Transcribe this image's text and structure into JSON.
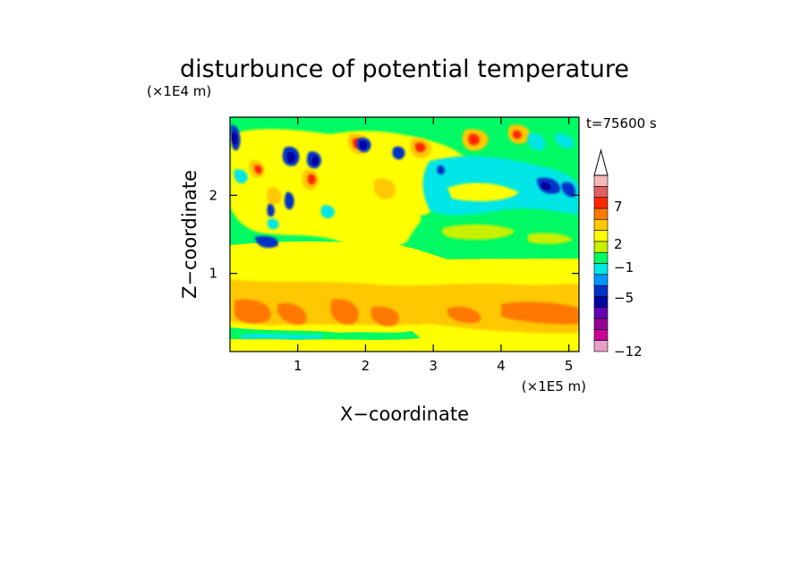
{
  "chart_data": {
    "type": "heatmap",
    "title": "disturbunce of potential temperature",
    "time_label": "t=75600 s",
    "xlabel": "X−coordinate",
    "ylabel": "Z−coordinate",
    "x_unit": "(×1E5 m)",
    "y_unit": "(×1E4 m)",
    "xlim": [
      0,
      5.15
    ],
    "ylim": [
      0,
      3.0
    ],
    "x_ticks": [
      1,
      2,
      3,
      4,
      5
    ],
    "y_ticks": [
      1,
      2
    ],
    "x_tick_labels": [
      "1",
      "2",
      "3",
      "4",
      "5"
    ],
    "y_tick_labels": [
      "1",
      "2"
    ],
    "colorbar": {
      "extend": "max",
      "tick_values": [
        7,
        2,
        -1,
        -5,
        -12
      ],
      "tick_labels": [
        "7",
        "2",
        "−1",
        "−5",
        "−12"
      ],
      "levels": [
        {
          "color": "#e6a0c8"
        },
        {
          "color": "#c80096"
        },
        {
          "color": "#960096"
        },
        {
          "color": "#6400b4"
        },
        {
          "color": "#0000a0"
        },
        {
          "color": "#0032c8"
        },
        {
          "color": "#0096ff"
        },
        {
          "color": "#00e6e6"
        },
        {
          "color": "#00fa64"
        },
        {
          "color": "#c8f000"
        },
        {
          "color": "#ffff00"
        },
        {
          "color": "#ffc800"
        },
        {
          "color": "#ff7800"
        },
        {
          "color": "#ff2800"
        },
        {
          "color": "#e06060"
        },
        {
          "color": "#f7b8b8"
        }
      ],
      "over_color": "#ffffff"
    },
    "field_features": {
      "background_level_color": "#00fa64",
      "lower_layer": {
        "z_range": [
          0.0,
          1.1
        ],
        "dominant_color": "#ffff00",
        "warm_core_color": "#ffc800"
      },
      "surface_band": {
        "z_range": [
          0.12,
          0.25
        ],
        "color": "#00fa64"
      },
      "upper_wave_region": {
        "x_range": [
          0.0,
          3.2
        ],
        "z_range": [
          1.2,
          3.0
        ],
        "pattern": "alternating warm and cold cells"
      }
    }
  }
}
